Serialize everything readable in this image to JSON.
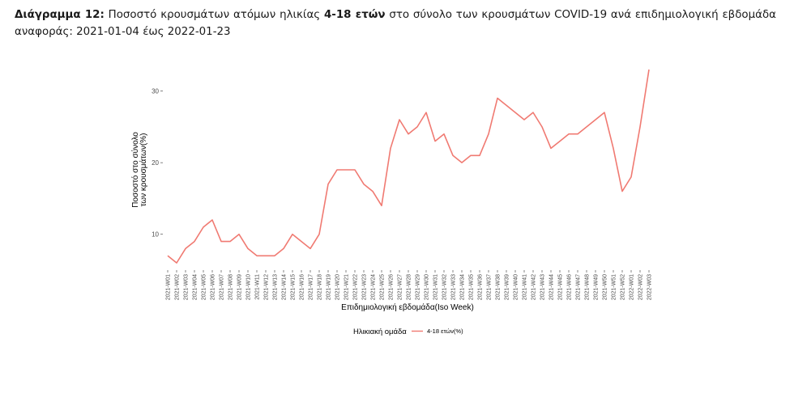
{
  "caption": {
    "label": "Διάγραμμα 12:",
    "text_before": "Ποσοστό κρουσμάτων ατόμων ηλικίας",
    "age_group": "4-18 ετών",
    "text_after": "στο σύνολο των κρουσμάτων COVID-19 ανά επιδημιολογική εβδομάδα αναφοράς: 2021-01-04 έως 2022-01-23"
  },
  "chart_data": {
    "type": "line",
    "xlabel": "Επιδημιολογική εβδομάδα(Iso Week)",
    "ylabel": "Ποσοστό στο σύνολο των κρουσμάτων(%)",
    "ylabel_lines": [
      "Ποσοστό στο σύνολο",
      "των κρουσμάτων(%)"
    ],
    "ylim": [
      5,
      33
    ],
    "yticks": [
      10,
      20,
      30
    ],
    "grid": false,
    "legend_title": "Ηλικιακή ομάδα",
    "legend_position": "bottom",
    "categories": [
      "2021-W01",
      "2021-W02",
      "2021-W03",
      "2021-W04",
      "2021-W05",
      "2021-W06",
      "2021-W07",
      "2021-W08",
      "2021-W09",
      "2021-W10",
      "2021-W11",
      "2021-W12",
      "2021-W13",
      "2021-W14",
      "2021-W15",
      "2021-W16",
      "2021-W17",
      "2021-W18",
      "2021-W19",
      "2021-W20",
      "2021-W21",
      "2021-W22",
      "2021-W23",
      "2021-W24",
      "2021-W25",
      "2021-W26",
      "2021-W27",
      "2021-W28",
      "2021-W29",
      "2021-W30",
      "2021-W31",
      "2021-W32",
      "2021-W33",
      "2021-W34",
      "2021-W35",
      "2021-W36",
      "2021-W37",
      "2021-W38",
      "2021-W39",
      "2021-W40",
      "2021-W41",
      "2021-W42",
      "2021-W43",
      "2021-W44",
      "2021-W45",
      "2021-W46",
      "2021-W47",
      "2021-W48",
      "2021-W49",
      "2021-W50",
      "2021-W51",
      "2021-W52",
      "2022-W01",
      "2022-W02",
      "2022-W03"
    ],
    "series": [
      {
        "name": "4-18 ετών(%)",
        "color": "#f07a72",
        "values": [
          7,
          6,
          8,
          9,
          11,
          12,
          9,
          9,
          10,
          8,
          7,
          7,
          7,
          8,
          10,
          9,
          8,
          10,
          17,
          19,
          19,
          19,
          17,
          16,
          14,
          22,
          26,
          24,
          25,
          27,
          23,
          24,
          21,
          20,
          21,
          21,
          24,
          29,
          28,
          27,
          26,
          27,
          25,
          22,
          23,
          24,
          24,
          25,
          26,
          27,
          22,
          16,
          18,
          25,
          33
        ]
      }
    ]
  }
}
